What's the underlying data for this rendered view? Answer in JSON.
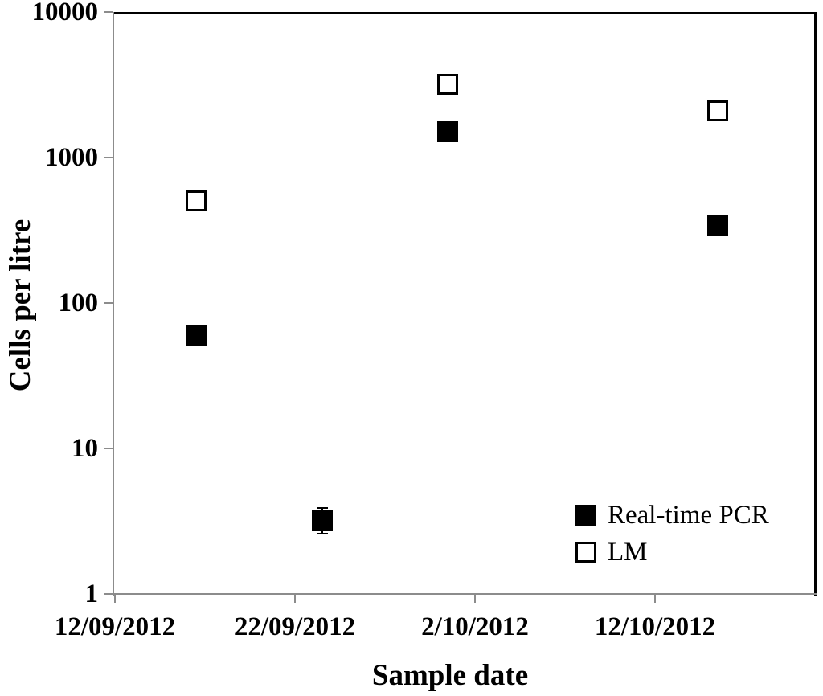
{
  "figure": {
    "background_color": "#ffffff",
    "text_color": "#000000",
    "axis_color": "#8c8c8c",
    "border_color": "#000000"
  },
  "chart_data": {
    "type": "scatter",
    "title": "",
    "xlabel": "Sample date",
    "ylabel": "Cells per litre",
    "y_scale": "log",
    "ylim": [
      1,
      10000
    ],
    "grid": false,
    "y_ticks": [
      {
        "value": 1,
        "label": "1"
      },
      {
        "value": 10,
        "label": "10"
      },
      {
        "value": 100,
        "label": "100"
      },
      {
        "value": 1000,
        "label": "1000"
      },
      {
        "value": 10000,
        "label": "10000"
      }
    ],
    "x_ticks": [
      {
        "day": 0,
        "label": "12/09/2012"
      },
      {
        "day": 10,
        "label": "22/09/2012"
      },
      {
        "day": 20,
        "label": "2/10/2012"
      },
      {
        "day": 30,
        "label": "12/10/2012"
      }
    ],
    "x_axis_day_range": [
      0,
      39
    ],
    "series": [
      {
        "name": "Real-time PCR",
        "marker": "filled-square",
        "color": "#000000",
        "points": [
          {
            "day": 4.5,
            "value": 60
          },
          {
            "day": 11.5,
            "value": 3.2,
            "error_low": 2.6,
            "error_high": 3.9
          },
          {
            "day": 18.5,
            "value": 1500
          },
          {
            "day": 33.5,
            "value": 340
          }
        ]
      },
      {
        "name": "LM",
        "marker": "open-square",
        "color": "#000000",
        "points": [
          {
            "day": 4.5,
            "value": 500
          },
          {
            "day": 18.5,
            "value": 3200
          },
          {
            "day": 33.5,
            "value": 2100
          }
        ]
      }
    ],
    "legend": {
      "position": "bottom-right"
    }
  }
}
